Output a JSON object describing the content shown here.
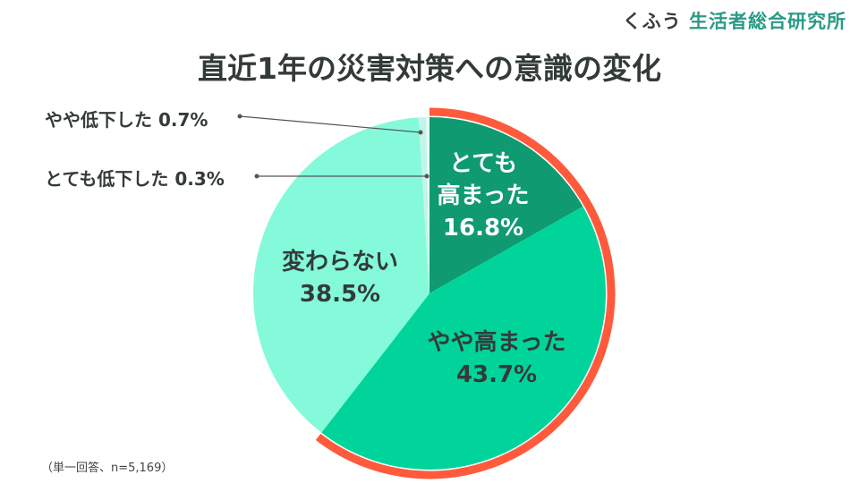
{
  "logo": {
    "kufu": "くふう",
    "org": "生活者総合研究所"
  },
  "chart_data": {
    "type": "pie",
    "title": "直近1年の災害対策への意識の変化",
    "note": "（単一回答、n=5,169）",
    "slices": [
      {
        "label_lines": [
          "とても",
          "高まった"
        ],
        "label": "とても高まった",
        "value": 16.8,
        "value_text": "16.8%",
        "color": "#0f9a72"
      },
      {
        "label_lines": [
          "やや高まった"
        ],
        "label": "やや高まった",
        "value": 43.7,
        "value_text": "43.7%",
        "color": "#00d49a"
      },
      {
        "label_lines": [
          "変わらない"
        ],
        "label": "変わらない",
        "value": 38.5,
        "value_text": "38.5%",
        "color": "#84fadb"
      },
      {
        "label": "やや低下した",
        "value": 0.7,
        "value_text": "0.7%",
        "color": "#c2f5e7"
      },
      {
        "label": "とても低下した",
        "value": 0.3,
        "value_text": "0.3%",
        "color": "#e8fbf5"
      }
    ],
    "highlight_color": "#ff5a3c"
  }
}
